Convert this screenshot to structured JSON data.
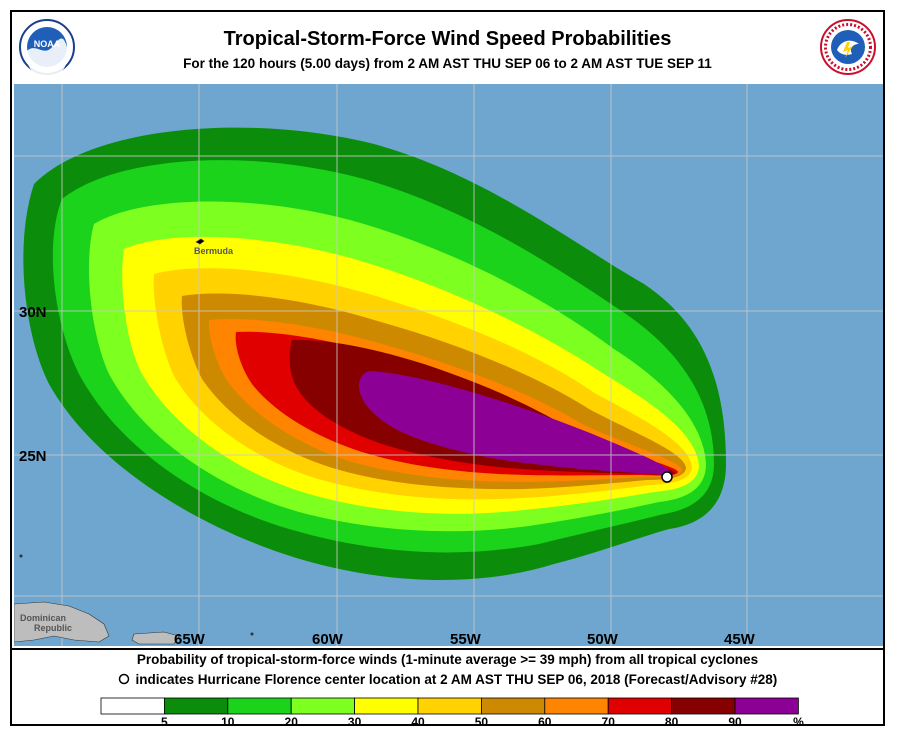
{
  "header": {
    "title": "Tropical-Storm-Force Wind Speed Probabilities",
    "subtitle": "For the 120 hours (5.00 days) from 2 AM AST THU SEP 06 to 2 AM AST TUE SEP 11"
  },
  "logos": {
    "noaa": {
      "text": "NOAA",
      "icon": "noaa-logo"
    },
    "nws": {
      "text": "NATIONAL WEATHER SERVICE",
      "icon": "nws-logo"
    }
  },
  "map": {
    "ocean_color": "#6ea6cf",
    "land_color": "#bdbdbd",
    "grid_color": "#c9c9c9",
    "lat_labels": [
      "30N",
      "25N"
    ],
    "lon_labels": [
      "65W",
      "60W",
      "55W",
      "50W",
      "45W"
    ],
    "places": {
      "bermuda": "Bermuda",
      "dominican_republic": "Dominican\nRepublic"
    },
    "storm_center_marker": "storm-center-icon"
  },
  "footer": {
    "caption1": "Probability of tropical-storm-force winds (1-minute average >= 39 mph) from all tropical cyclones",
    "caption2": "indicates Hurricane Florence center location at 2 AM AST THU SEP 06, 2018 (Forecast/Advisory #28)"
  },
  "legend": {
    "colors": [
      "#ffffff",
      "#0b8d0b",
      "#1ad31a",
      "#7dff1f",
      "#ffff00",
      "#ffd200",
      "#cd8a00",
      "#ff8400",
      "#e10000",
      "#870000",
      "#8c0096"
    ],
    "labels": [
      "5",
      "10",
      "20",
      "30",
      "40",
      "50",
      "60",
      "70",
      "80",
      "90",
      "%"
    ]
  },
  "probability_levels": [
    5,
    10,
    20,
    30,
    40,
    50,
    60,
    70,
    80,
    90
  ]
}
